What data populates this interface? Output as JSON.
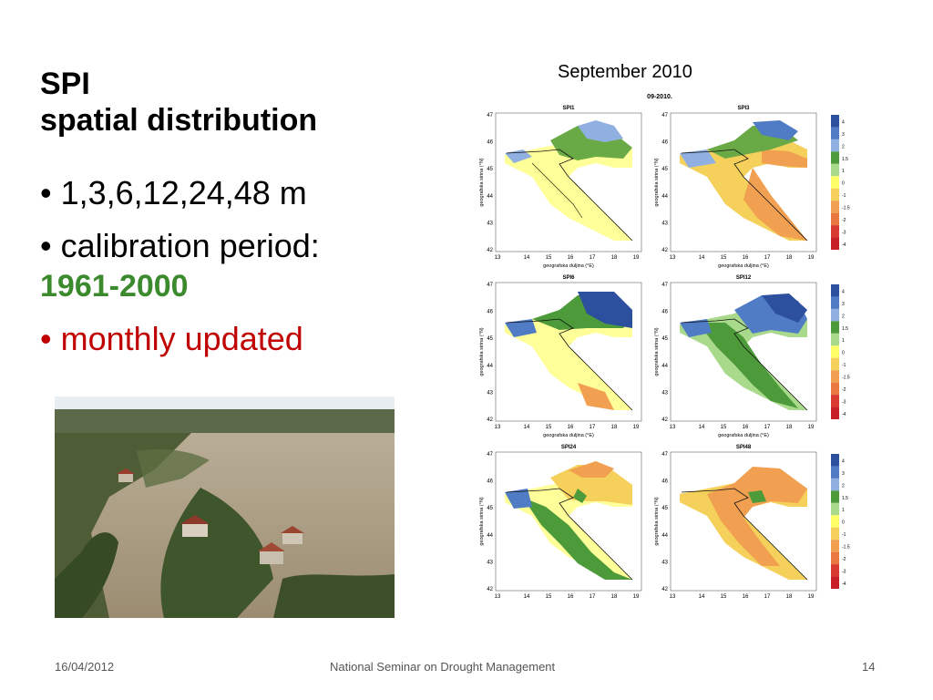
{
  "slide": {
    "title_line1": "SPI",
    "title_line2": "spatial distribution",
    "bullet1": "• 1,3,6,12,24,48 m",
    "bullet2": "• calibration period:",
    "bullet2_value": "1961-2000",
    "bullet3": "• monthly updated",
    "right_heading": "September 2010"
  },
  "figure": {
    "supertitle": "09-2010.",
    "panels": [
      {
        "title": "SPI1"
      },
      {
        "title": "SPI3"
      },
      {
        "title": "SPI6"
      },
      {
        "title": "SPI12"
      },
      {
        "title": "SPI24"
      },
      {
        "title": "SPI48"
      }
    ],
    "y_ticks": [
      "47",
      "46",
      "45",
      "44",
      "43",
      "42"
    ],
    "x_ticks": [
      "13",
      "14",
      "15",
      "16",
      "17",
      "18",
      "19"
    ],
    "x_label": "geografska duljina (°E)",
    "y_label": "geografska sirina (°N)",
    "colorbar_labels": [
      "4",
      "3",
      "2",
      "1.5",
      "1",
      "0",
      "-1",
      "-1.5",
      "-2",
      "-3",
      "-4"
    ],
    "colorbar_colors": [
      "#2c4f9e",
      "#4f7cc4",
      "#8fb0e0",
      "#4c9a3a",
      "#a9d98a",
      "#ffff66",
      "#f5d05a",
      "#f0a050",
      "#e87840",
      "#d83a30",
      "#c81e28"
    ]
  },
  "footer": {
    "date": "16/04/2012",
    "center": "National Seminar on Drought Management",
    "page": "14"
  }
}
